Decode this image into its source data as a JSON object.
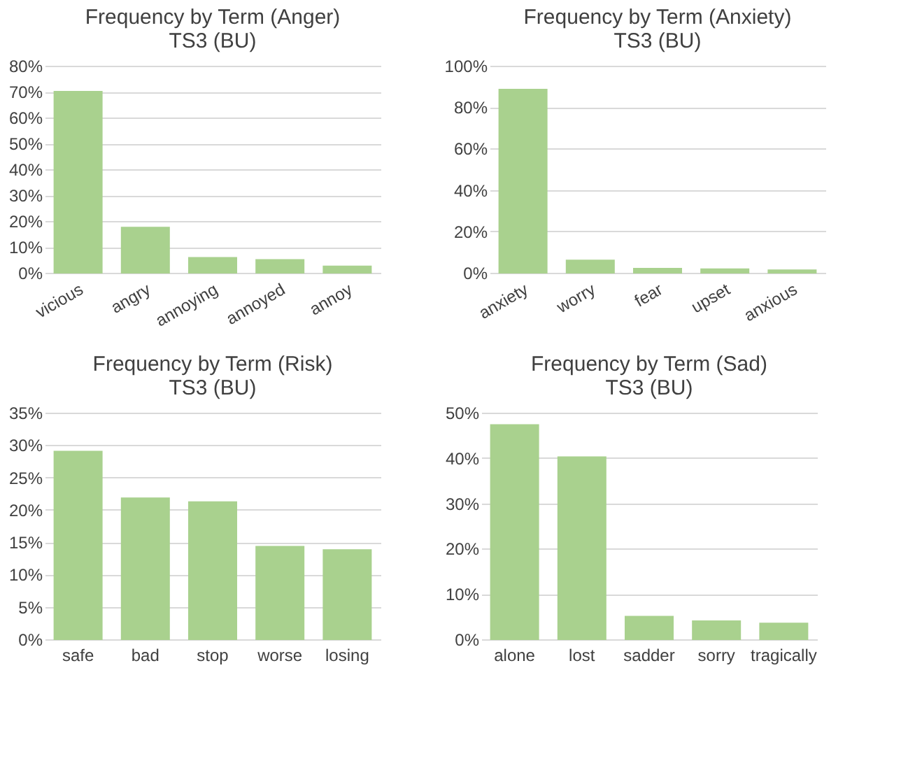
{
  "chart_data": [
    {
      "type": "bar",
      "title": [
        "Frequency by Term (Anger)",
        "TS3 (BU)"
      ],
      "categories": [
        "vicious",
        "angry",
        "annoying",
        "annoyed",
        "annoy"
      ],
      "values": [
        70,
        17.5,
        5.8,
        5,
        2.5
      ],
      "color": "#a9d18e",
      "ylim": [
        0,
        80
      ],
      "yticks": [
        {
          "value": 0,
          "label": "0%"
        },
        {
          "value": 10,
          "label": "10%"
        },
        {
          "value": 20,
          "label": "20%"
        },
        {
          "value": 30,
          "label": "30%"
        },
        {
          "value": 40,
          "label": "40%"
        },
        {
          "value": 50,
          "label": "50%"
        },
        {
          "value": 60,
          "label": "60%"
        },
        {
          "value": 70,
          "label": "70%"
        },
        {
          "value": 80,
          "label": "80%"
        }
      ],
      "grid": "y"
    },
    {
      "type": "bar",
      "title": [
        "Frequency by Term (Anxiety)",
        "TS3 (BU)"
      ],
      "categories": [
        "anxiety",
        "worry",
        "fear",
        "upset",
        "anxious"
      ],
      "values": [
        88.5,
        6,
        2,
        1.8,
        1.3
      ],
      "color": "#a9d18e",
      "ylim": [
        0,
        100
      ],
      "yticks": [
        {
          "value": 0,
          "label": "0%"
        },
        {
          "value": 20,
          "label": "20%"
        },
        {
          "value": 40,
          "label": "40%"
        },
        {
          "value": 60,
          "label": "60%"
        },
        {
          "value": 80,
          "label": "80%"
        },
        {
          "value": 100,
          "label": "100%"
        }
      ],
      "grid": "y"
    },
    {
      "type": "bar",
      "title": [
        "Frequency by Term (Risk)",
        "TS3 (BU)"
      ],
      "categories": [
        "safe",
        "bad",
        "stop",
        "worse",
        "losing"
      ],
      "values": [
        29,
        21.8,
        21.2,
        14.3,
        13.8
      ],
      "color": "#a9d18e",
      "ylim": [
        0,
        35
      ],
      "yticks": [
        {
          "value": 0,
          "label": "0%"
        },
        {
          "value": 5,
          "label": "5%"
        },
        {
          "value": 10,
          "label": "10%"
        },
        {
          "value": 15,
          "label": "15%"
        },
        {
          "value": 20,
          "label": "20%"
        },
        {
          "value": 25,
          "label": "25%"
        },
        {
          "value": 30,
          "label": "30%"
        },
        {
          "value": 35,
          "label": "35%"
        }
      ],
      "grid": "y"
    },
    {
      "type": "bar",
      "title": [
        "Frequency by Term (Sad)",
        "TS3 (BU)"
      ],
      "categories": [
        "alone",
        "lost",
        "sadder",
        "sorry",
        "tragically"
      ],
      "values": [
        47.3,
        40.2,
        5,
        4,
        3.5
      ],
      "color": "#a9d18e",
      "ylim": [
        0,
        50
      ],
      "yticks": [
        {
          "value": 0,
          "label": "0%"
        },
        {
          "value": 10,
          "label": "10%"
        },
        {
          "value": 20,
          "label": "20%"
        },
        {
          "value": 30,
          "label": "30%"
        },
        {
          "value": 40,
          "label": "40%"
        },
        {
          "value": 50,
          "label": "50%"
        }
      ],
      "grid": "y"
    }
  ]
}
